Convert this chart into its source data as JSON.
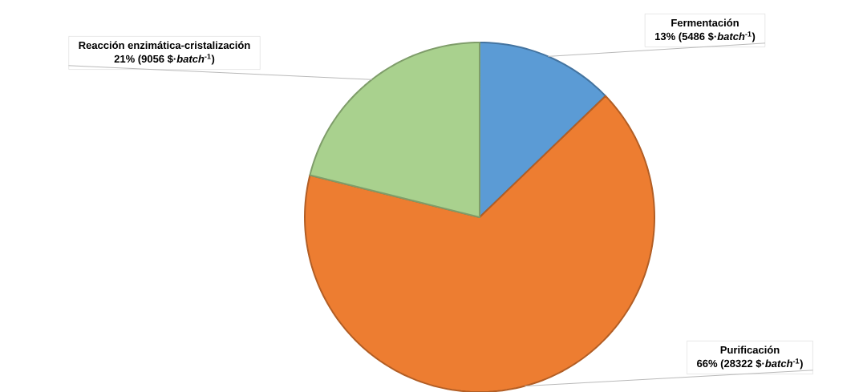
{
  "chart_data": {
    "type": "pie",
    "categories": [
      "Fermentación",
      "Purificación",
      "Reacción enzimática-cristalización"
    ],
    "values": [
      5486,
      28322,
      9056
    ],
    "value_labels": [
      "13% (5486 $·*batch*$^{-1}$)",
      "66% (28322 $·*batch*$^{-1}$)",
      "21% (9056 $·*batch*$^{-1}$)"
    ],
    "colors": [
      "#5b9bd5",
      "#ed7d31",
      "#a9d18e"
    ]
  }
}
